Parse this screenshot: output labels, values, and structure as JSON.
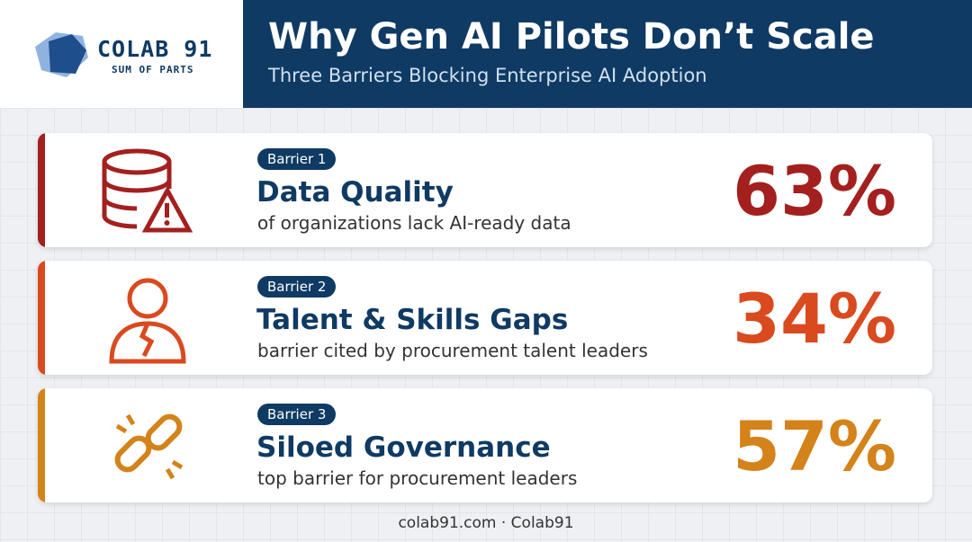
{
  "header": {
    "logo_name": "COLAB 91",
    "logo_tagline": "SUM OF PARTS",
    "title": "Why Gen AI Pilots Don’t Scale",
    "subtitle": "Three Barriers Blocking Enterprise AI Adoption"
  },
  "barriers": [
    {
      "badge": "Barrier 1",
      "title": "Data Quality",
      "description": "of organizations lack AI-ready data",
      "stat": "63%",
      "color": "#a3201f"
    },
    {
      "badge": "Barrier 2",
      "title": "Talent & Skills Gaps",
      "description": "barrier cited by procurement talent leaders",
      "stat": "34%",
      "color": "#d94a1f"
    },
    {
      "badge": "Barrier 3",
      "title": "Siloed Governance",
      "description": "top barrier for procurement leaders",
      "stat": "57%",
      "color": "#d4821a"
    }
  ],
  "footer": "colab91.com · Colab91"
}
